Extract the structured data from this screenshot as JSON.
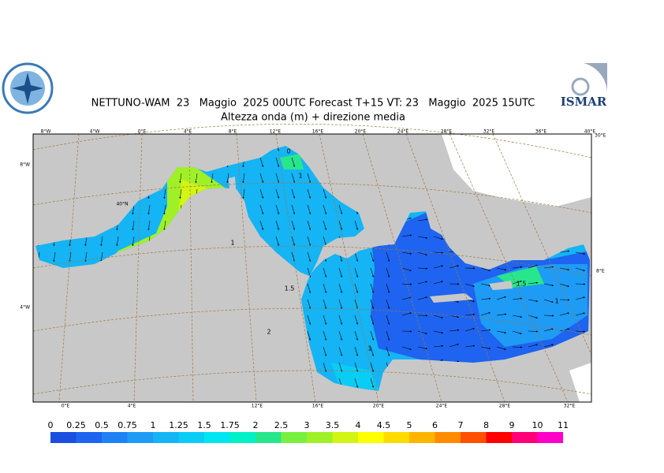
{
  "header": {
    "title": "NETTUNO-WAM  23   Maggio  2025 00UTC Forecast T+15 VT: 23   Maggio  2025 15UTC",
    "subtitle": "Altezza onda (m) + direzione media",
    "logo_text": "ISMAR"
  },
  "map": {
    "top_labels": [
      "8°W",
      "4°W",
      "0°E",
      "4°E",
      "8°E",
      "12°E",
      "16°E",
      "20°E",
      "24°E",
      "28°E",
      "32°E",
      "36°E",
      "40°E"
    ],
    "bottom_labels": [
      "0°E",
      "4°E",
      "12°E",
      "16°E",
      "20°E",
      "24°E",
      "28°E",
      "32°E"
    ],
    "side_labels": [
      "8°W",
      "4°W",
      "40°N",
      "30°E",
      "8°E"
    ],
    "contour_labels": [
      "0",
      "1",
      "1",
      "1.5",
      "1",
      "1.5",
      "2",
      "1"
    ]
  },
  "colorbar": {
    "labels": [
      0,
      0.25,
      0.5,
      0.75,
      1,
      1.25,
      1.5,
      1.75,
      2,
      2.5,
      3,
      3.5,
      4,
      4.5,
      5,
      6,
      7,
      8,
      9,
      10,
      11
    ],
    "colors": [
      "#1a4fe0",
      "#1e64f0",
      "#1e82f5",
      "#1e9bf5",
      "#14b4f5",
      "#0acdf5",
      "#00e6f0",
      "#00f0c8",
      "#28e68c",
      "#78f040",
      "#a0f028",
      "#d2f514",
      "#ffff00",
      "#ffdc00",
      "#ffb400",
      "#ff8c00",
      "#ff5000",
      "#ff0000",
      "#ff0078",
      "#ff00c8"
    ]
  }
}
